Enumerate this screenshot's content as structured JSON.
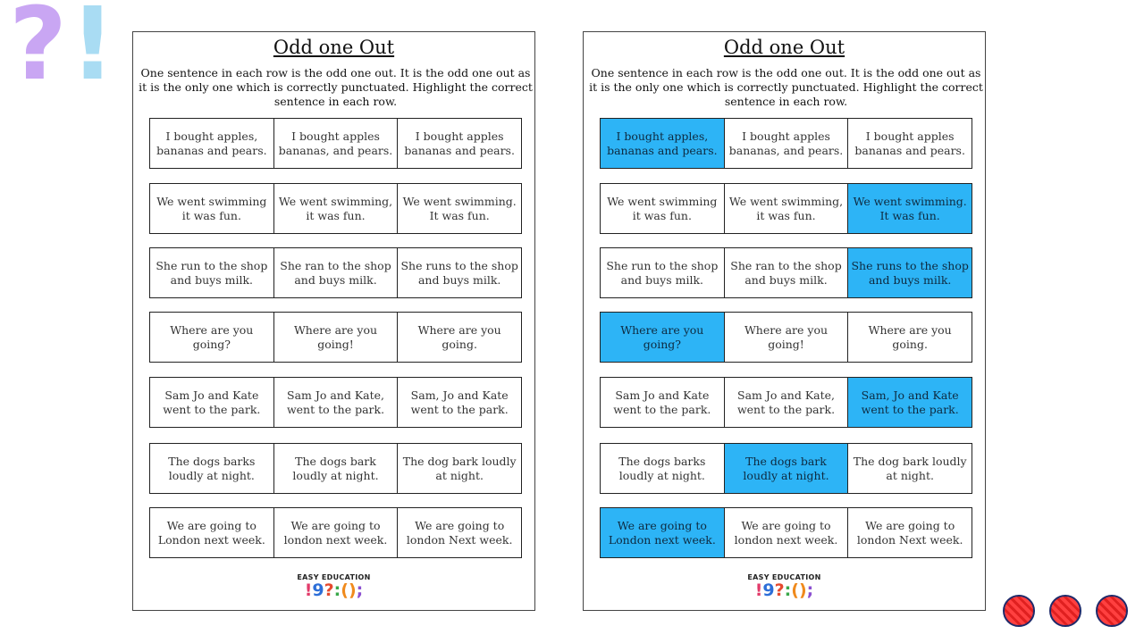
{
  "decor": {
    "question": "?",
    "exclaim": "!"
  },
  "worksheet": {
    "title": "Odd one Out",
    "instructions": "One sentence in each row is the odd one out. It is the odd one out as it is the only one which is correctly punctuated. Highlight the correct sentence in each row.",
    "rows": [
      [
        "I bought apples, bananas and pears.",
        "I bought apples bananas, and pears.",
        "I bought apples bananas and pears."
      ],
      [
        "We went swimming it was fun.",
        "We went swimming, it was fun.",
        "We went swimming. It was fun."
      ],
      [
        "She run to the shop and buys milk.",
        "She ran to the shop and buys milk.",
        "She runs to the shop and buys milk."
      ],
      [
        "Where are you going?",
        "Where are you going!",
        "Where are you going."
      ],
      [
        "Sam Jo and Kate went to the park.",
        "Sam Jo and Kate, went to the park.",
        "Sam, Jo and Kate went to the park."
      ],
      [
        "The dogs barks loudly at night.",
        "The dogs bark loudly at night.",
        "The dog bark loudly at night."
      ],
      [
        "We are going to London next week.",
        "We are going to london next week.",
        "We are going to london Next week."
      ]
    ],
    "answer_key": [
      0,
      2,
      2,
      0,
      2,
      1,
      0
    ]
  },
  "logo": {
    "text": "EASY EDUCATION",
    "marks": [
      "!",
      "9",
      "?",
      ":",
      "()",
      ";"
    ]
  },
  "colors": {
    "highlight": "#2db4f6",
    "purple": "#c9a6f3",
    "lightblue": "#a9dcf3"
  }
}
